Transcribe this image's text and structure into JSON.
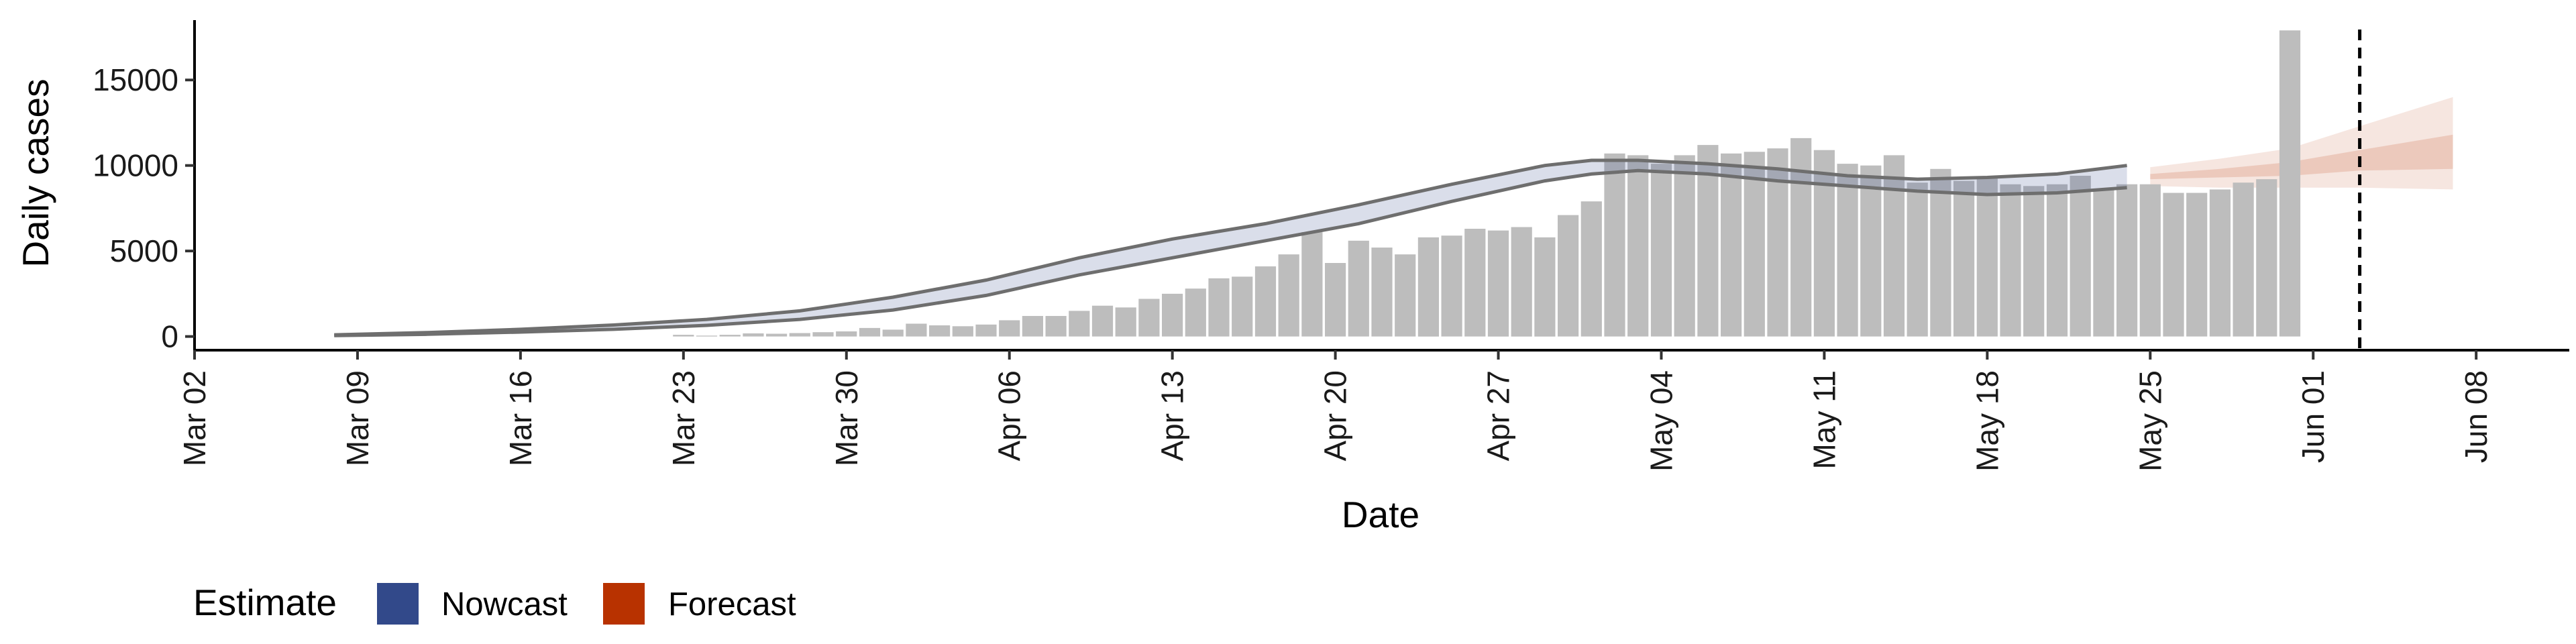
{
  "chart_data": {
    "type": "bar",
    "xlabel": "Date",
    "ylabel": "Daily cases",
    "x_axis": {
      "type": "date",
      "range": [
        "2020-03-02",
        "2020-06-12"
      ],
      "ticks": [
        {
          "date": "2020-03-02",
          "label": "Mar 02"
        },
        {
          "date": "2020-03-09",
          "label": "Mar 09"
        },
        {
          "date": "2020-03-16",
          "label": "Mar 16"
        },
        {
          "date": "2020-03-23",
          "label": "Mar 23"
        },
        {
          "date": "2020-03-30",
          "label": "Mar 30"
        },
        {
          "date": "2020-04-06",
          "label": "Apr 06"
        },
        {
          "date": "2020-04-13",
          "label": "Apr 13"
        },
        {
          "date": "2020-04-20",
          "label": "Apr 20"
        },
        {
          "date": "2020-04-27",
          "label": "Apr 27"
        },
        {
          "date": "2020-05-04",
          "label": "May 04"
        },
        {
          "date": "2020-05-11",
          "label": "May 11"
        },
        {
          "date": "2020-05-18",
          "label": "May 18"
        },
        {
          "date": "2020-05-25",
          "label": "May 25"
        },
        {
          "date": "2020-06-01",
          "label": "Jun 01"
        },
        {
          "date": "2020-06-08",
          "label": "Jun 08"
        }
      ]
    },
    "y_axis": {
      "range": [
        -800,
        18500
      ],
      "ticks": [
        0,
        5000,
        10000,
        15000
      ],
      "tick_labels": [
        "0",
        "5000",
        "10000",
        "15000"
      ]
    },
    "grid": false,
    "legend_position": "bottom-left",
    "legend_title": "Estimate",
    "legend": [
      {
        "label": "Nowcast",
        "color": "#32498a"
      },
      {
        "label": "Forecast",
        "color": "#b83200"
      }
    ],
    "reference_line": {
      "date": "2020-06-03",
      "style": "dashed",
      "color": "#000000"
    },
    "bars": {
      "color": "#bdbdbd",
      "dates": [
        "2020-03-23",
        "2020-03-24",
        "2020-03-25",
        "2020-03-26",
        "2020-03-27",
        "2020-03-28",
        "2020-03-29",
        "2020-03-30",
        "2020-03-31",
        "2020-04-01",
        "2020-04-02",
        "2020-04-03",
        "2020-04-04",
        "2020-04-05",
        "2020-04-06",
        "2020-04-07",
        "2020-04-08",
        "2020-04-09",
        "2020-04-10",
        "2020-04-11",
        "2020-04-12",
        "2020-04-13",
        "2020-04-14",
        "2020-04-15",
        "2020-04-16",
        "2020-04-17",
        "2020-04-18",
        "2020-04-19",
        "2020-04-20",
        "2020-04-21",
        "2020-04-22",
        "2020-04-23",
        "2020-04-24",
        "2020-04-25",
        "2020-04-26",
        "2020-04-27",
        "2020-04-28",
        "2020-04-29",
        "2020-04-30",
        "2020-05-01",
        "2020-05-02",
        "2020-05-03",
        "2020-05-04",
        "2020-05-05",
        "2020-05-06",
        "2020-05-07",
        "2020-05-08",
        "2020-05-09",
        "2020-05-10",
        "2020-05-11",
        "2020-05-12",
        "2020-05-13",
        "2020-05-14",
        "2020-05-15",
        "2020-05-16",
        "2020-05-17",
        "2020-05-18",
        "2020-05-19",
        "2020-05-20",
        "2020-05-21",
        "2020-05-22",
        "2020-05-23",
        "2020-05-24",
        "2020-05-25",
        "2020-05-26",
        "2020-05-27",
        "2020-05-28",
        "2020-05-29",
        "2020-05-30",
        "2020-05-31",
        "2020-06-01",
        "2020-06-02"
      ],
      "values": [
        100,
        50,
        100,
        180,
        160,
        200,
        250,
        300,
        500,
        400,
        750,
        650,
        600,
        700,
        950,
        1200,
        1200,
        1500,
        1800,
        1700,
        2200,
        2500,
        2800,
        3400,
        3500,
        4100,
        4800,
        6100,
        4300,
        5600,
        5200,
        4800,
        5800,
        5900,
        6300,
        6200,
        6400,
        5800,
        7100,
        7900,
        10700,
        10600,
        10100,
        10600,
        11200,
        10700,
        10800,
        11000,
        11600,
        10900,
        10100,
        10000,
        10600,
        9000,
        9800,
        9100,
        9300,
        8900,
        8800,
        8900,
        9400,
        8600,
        8900,
        8900,
        8400,
        8400,
        8600,
        9000,
        9200,
        17900,
        0,
        0
      ]
    },
    "nowcast": {
      "color": "#32498a",
      "dates": [
        "2020-03-08",
        "2020-03-12",
        "2020-03-16",
        "2020-03-20",
        "2020-03-24",
        "2020-03-28",
        "2020-04-01",
        "2020-04-05",
        "2020-04-09",
        "2020-04-13",
        "2020-04-17",
        "2020-04-21",
        "2020-04-25",
        "2020-04-29",
        "2020-05-01",
        "2020-05-03",
        "2020-05-06",
        "2020-05-09",
        "2020-05-12",
        "2020-05-15",
        "2020-05-18",
        "2020-05-21",
        "2020-05-24"
      ],
      "upper": [
        100,
        230,
        420,
        670,
        1000,
        1500,
        2300,
        3300,
        4600,
        5700,
        6600,
        7700,
        8900,
        10000,
        10300,
        10300,
        10100,
        9800,
        9400,
        9200,
        9300,
        9500,
        10000
      ],
      "lower": [
        50,
        130,
        260,
        420,
        650,
        1000,
        1550,
        2400,
        3600,
        4600,
        5600,
        6600,
        7900,
        9100,
        9500,
        9700,
        9500,
        9100,
        8800,
        8500,
        8300,
        8400,
        8700
      ]
    },
    "forecast": {
      "color": "#b83200",
      "dates": [
        "2020-05-25",
        "2020-05-28",
        "2020-05-31",
        "2020-06-03",
        "2020-06-07"
      ],
      "outer_upper": [
        9900,
        10400,
        11000,
        12300,
        14000
      ],
      "inner_upper": [
        9500,
        9800,
        10200,
        10900,
        11800
      ],
      "inner_lower": [
        9200,
        9300,
        9400,
        9700,
        9800
      ],
      "outer_lower": [
        8800,
        8700,
        8700,
        8700,
        8600
      ]
    }
  }
}
